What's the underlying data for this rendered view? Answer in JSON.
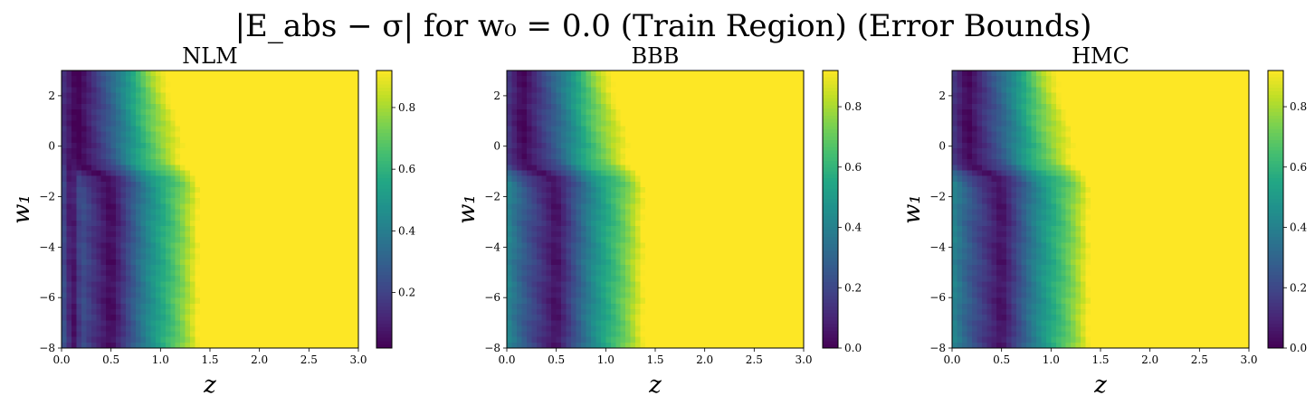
{
  "figure": {
    "suptitle": "|E_abs − σ| for w₀ = 0.0 (Train Region) (Error Bounds)"
  },
  "chart_data": [
    {
      "type": "heatmap",
      "title": "NLM",
      "xlabel": "z",
      "ylabel": "w₁",
      "xlim": [
        0.0,
        3.0
      ],
      "ylim": [
        -8,
        3
      ],
      "x_ticks": [
        "0.0",
        "0.5",
        "1.0",
        "1.5",
        "2.0",
        "2.5",
        "3.0"
      ],
      "y_ticks": [
        "2",
        "0",
        "−2",
        "−4",
        "−6",
        "−8"
      ],
      "colorbar_ticks": [
        "0.2",
        "0.4",
        "0.6",
        "0.8"
      ],
      "colorbar_range": [
        0.02,
        0.92
      ],
      "colormap": "viridis",
      "model": "nlm"
    },
    {
      "type": "heatmap",
      "title": "BBB",
      "xlabel": "z",
      "ylabel": "w₁",
      "xlim": [
        0.0,
        3.0
      ],
      "ylim": [
        -8,
        3
      ],
      "x_ticks": [
        "0.0",
        "0.5",
        "1.0",
        "1.5",
        "2.0",
        "2.5",
        "3.0"
      ],
      "y_ticks": [
        "2",
        "0",
        "−2",
        "−4",
        "−6",
        "−8"
      ],
      "colorbar_ticks": [
        "0.0",
        "0.2",
        "0.4",
        "0.6",
        "0.8"
      ],
      "colorbar_range": [
        0.0,
        0.92
      ],
      "colormap": "viridis",
      "model": "bbb"
    },
    {
      "type": "heatmap",
      "title": "HMC",
      "xlabel": "z",
      "ylabel": "w₁",
      "xlim": [
        0.0,
        3.0
      ],
      "ylim": [
        -8,
        3
      ],
      "x_ticks": [
        "0.0",
        "0.5",
        "1.0",
        "1.5",
        "2.0",
        "2.5",
        "3.0"
      ],
      "y_ticks": [
        "2",
        "0",
        "−2",
        "−4",
        "−6",
        "−8"
      ],
      "colorbar_ticks": [
        "0.0",
        "0.2",
        "0.4",
        "0.6",
        "0.8"
      ],
      "colorbar_range": [
        0.0,
        0.92
      ],
      "colormap": "viridis",
      "model": "hmc"
    }
  ]
}
